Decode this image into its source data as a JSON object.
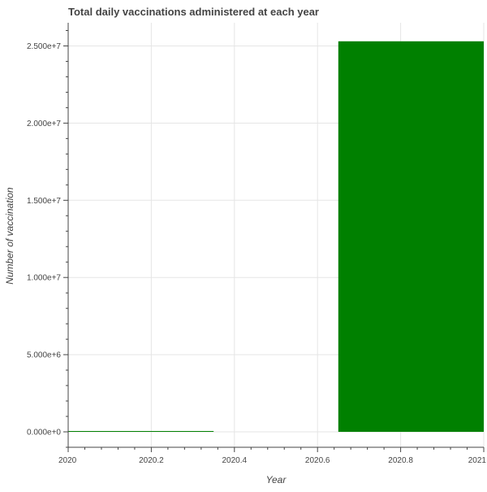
{
  "chart_data": {
    "type": "bar",
    "title": "Total daily vaccinations administered at each year",
    "xlabel": "Year",
    "ylabel": "Number of vaccination",
    "bars": [
      {
        "x_start": 2020.0,
        "x_end": 2020.35,
        "value": 20000
      },
      {
        "x_start": 2020.65,
        "x_end": 2021.0,
        "value": 25300000
      }
    ],
    "bar_color": "#008000",
    "xlim": [
      2020,
      2021
    ],
    "ylim": [
      -1000000,
      26500000
    ],
    "x_ticks": [
      2020,
      2020.2,
      2020.4,
      2020.6,
      2020.8,
      2021
    ],
    "x_tick_labels": [
      "2020",
      "2020.2",
      "2020.4",
      "2020.6",
      "2020.8",
      "2021"
    ],
    "y_ticks": [
      0,
      5000000,
      10000000,
      15000000,
      20000000,
      25000000
    ],
    "y_tick_labels": [
      "0.000e+0",
      "5.000e+6",
      "1.000e+7",
      "1.500e+7",
      "2.000e+7",
      "2.500e+7"
    ],
    "grid": true
  }
}
